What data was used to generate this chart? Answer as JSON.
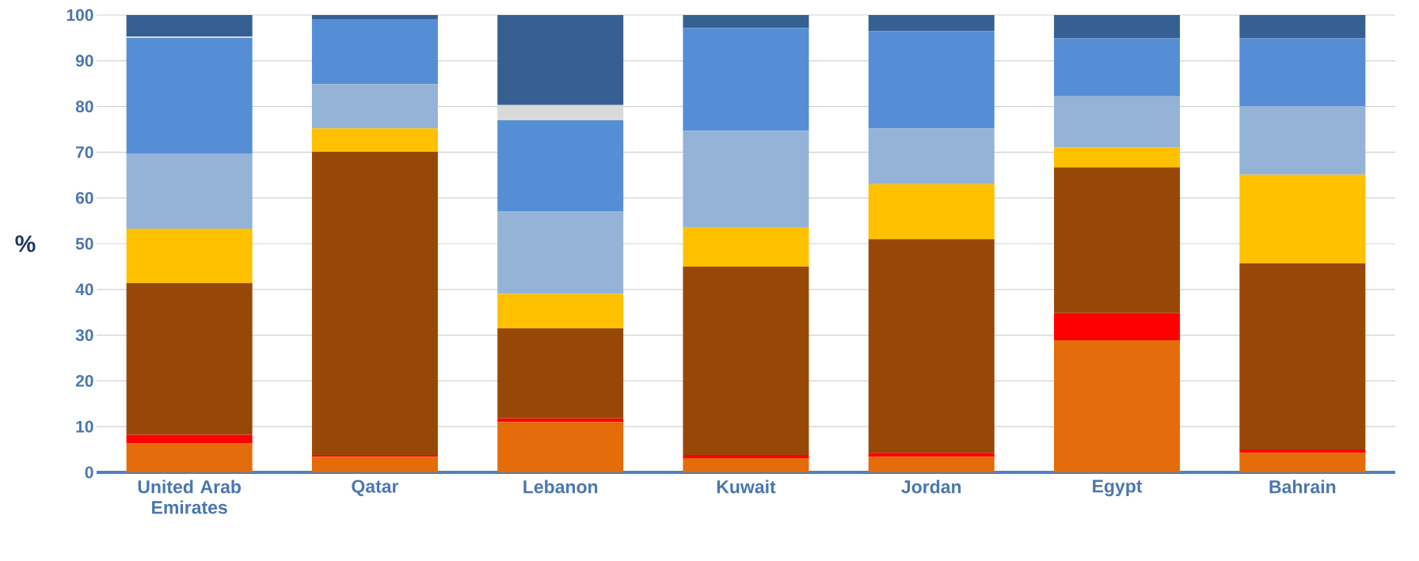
{
  "chart_data": {
    "type": "bar",
    "stacked": true,
    "ylabel": "%",
    "categories": [
      "United Arab Emirates",
      "Qatar",
      "Lebanon",
      "Kuwait",
      "Jordan",
      "Egypt",
      "Bahrain"
    ],
    "series": [
      {
        "color": "#e46c0a",
        "values": [
          6.3,
          3.4,
          11.0,
          3.1,
          3.4,
          28.9,
          4.3
        ]
      },
      {
        "color": "#ff0000",
        "values": [
          1.9,
          0.4,
          0.8,
          0.7,
          0.9,
          5.9,
          0.7
        ]
      },
      {
        "color": "#974806",
        "values": [
          33.2,
          66.3,
          19.7,
          41.2,
          46.7,
          31.9,
          40.7
        ]
      },
      {
        "color": "#ffc000",
        "values": [
          11.9,
          5.1,
          7.5,
          8.5,
          12.0,
          4.3,
          19.4
        ]
      },
      {
        "color": "#95b3d7",
        "values": [
          16.4,
          9.7,
          18.0,
          21.2,
          12.2,
          11.2,
          15.0
        ]
      },
      {
        "color": "#558ed5",
        "values": [
          25.3,
          14.1,
          20.0,
          22.5,
          21.3,
          12.7,
          14.8
        ]
      },
      {
        "color": "#d9d9d9",
        "values": [
          0.3,
          0,
          3.3,
          0,
          0,
          0,
          0
        ]
      },
      {
        "color": "#366092",
        "values": [
          4.7,
          1.0,
          19.7,
          2.8,
          3.5,
          5.1,
          5.1
        ]
      }
    ],
    "ylim": [
      0,
      100
    ],
    "yticks": [
      0,
      10,
      20,
      30,
      40,
      50,
      60,
      70,
      80,
      90,
      100
    ],
    "grid": "y"
  }
}
